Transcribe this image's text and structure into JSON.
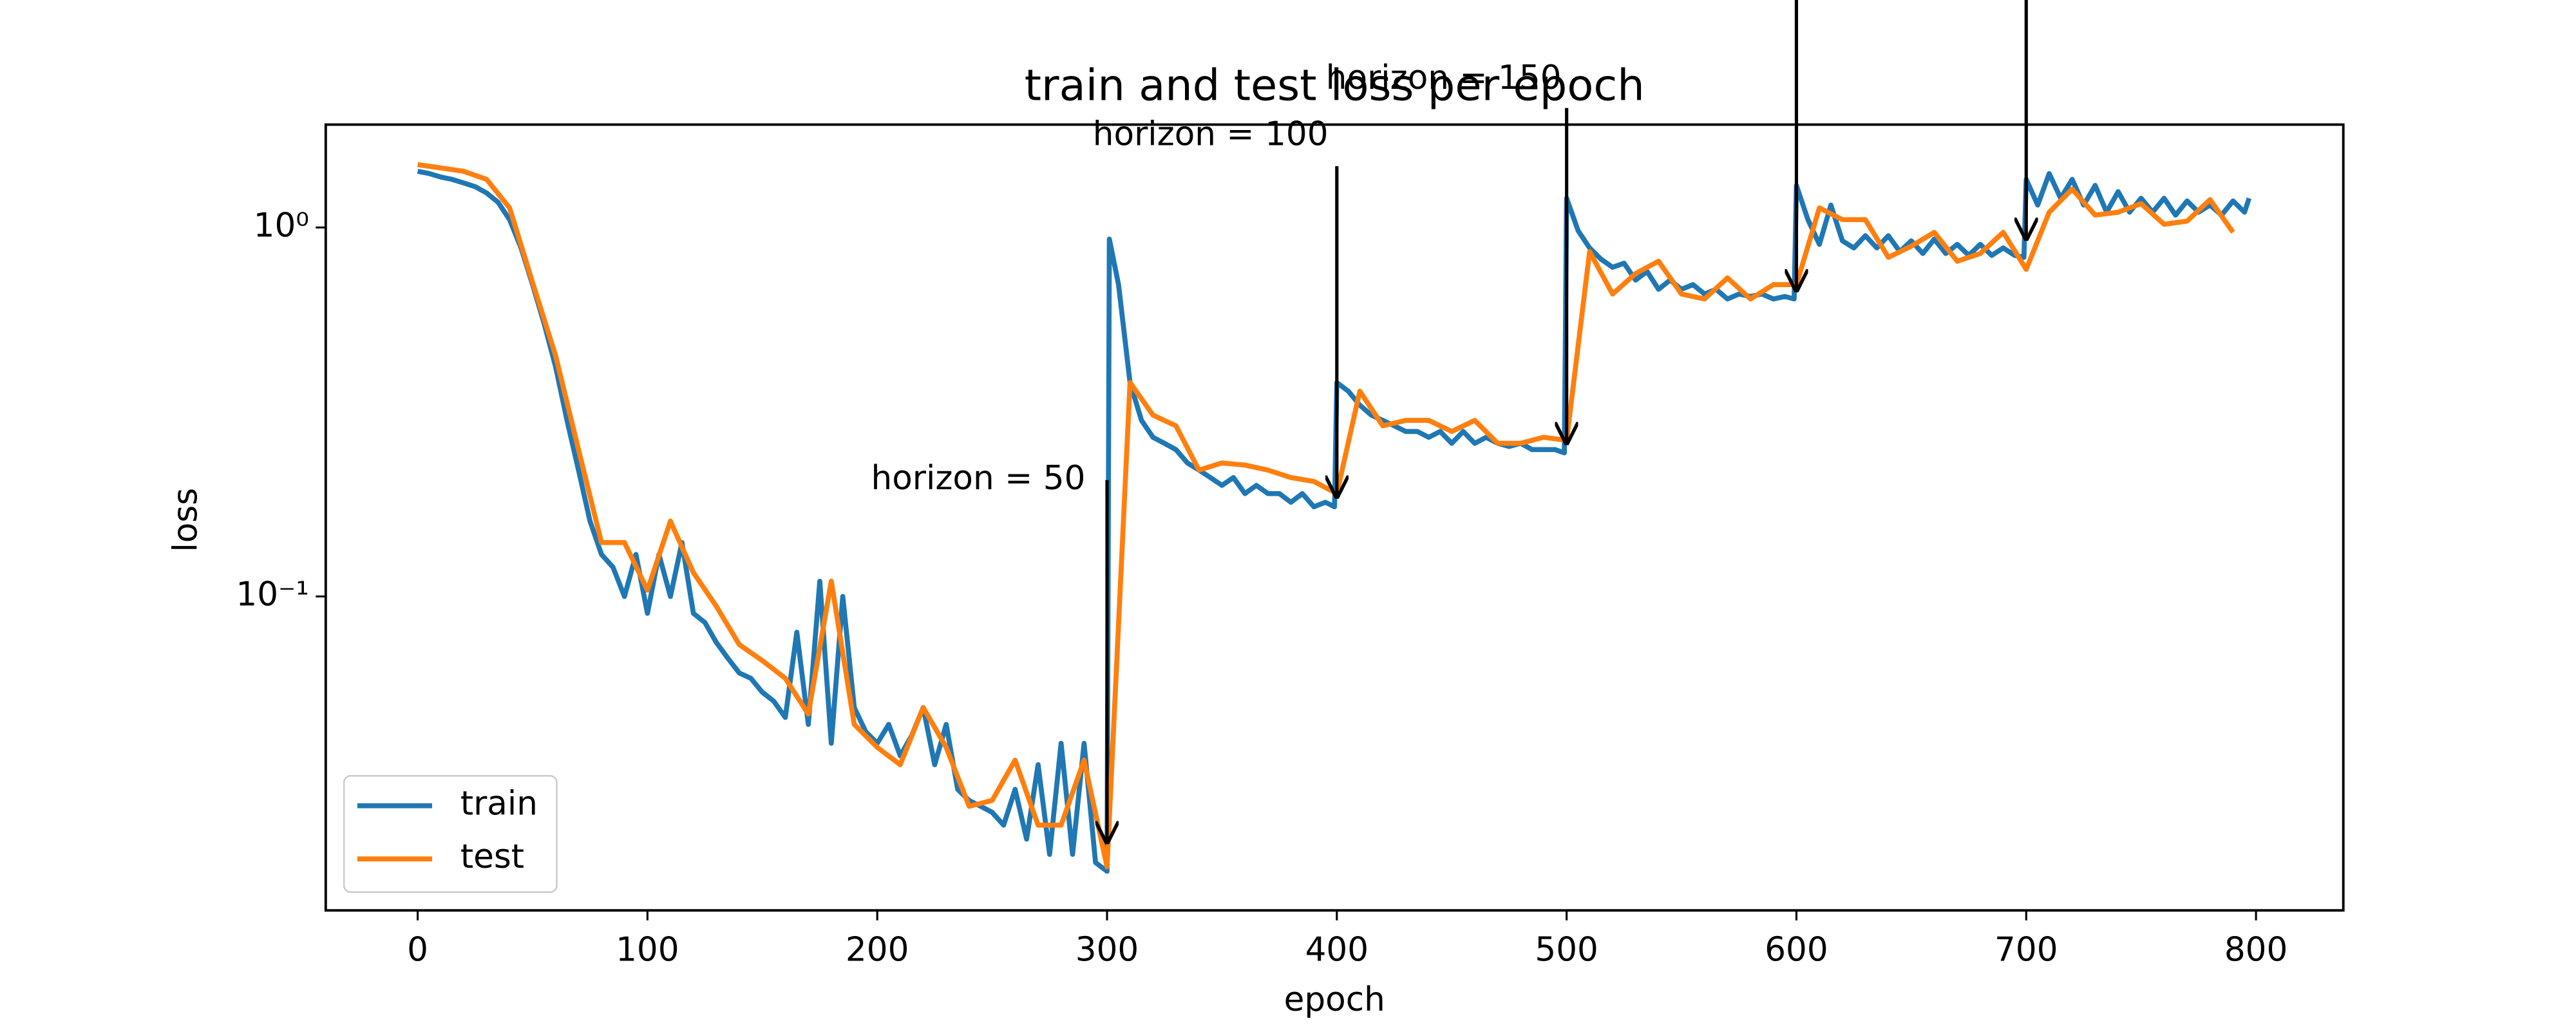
{
  "chart_data": {
    "type": "line",
    "title": "train and test loss per epoch",
    "x_label": "epoch",
    "y_label": "loss",
    "yscale": "log",
    "grid": false,
    "legend": "lower left",
    "xlim": [
      -40,
      838
    ],
    "ylim": [
      0.0141,
      1.9
    ],
    "xticks": [
      0,
      100,
      200,
      300,
      400,
      500,
      600,
      700,
      800
    ],
    "yticks": [
      {
        "value": 0.1,
        "label": "10⁻¹"
      },
      {
        "value": 1,
        "label": "10⁰"
      }
    ],
    "series": [
      {
        "name": "train",
        "color": "#1f77b4",
        "x": [
          0,
          5,
          10,
          15,
          20,
          25,
          30,
          35,
          40,
          45,
          50,
          55,
          60,
          65,
          70,
          75,
          80,
          85,
          90,
          95,
          100,
          105,
          110,
          115,
          120,
          125,
          130,
          135,
          140,
          145,
          150,
          155,
          160,
          165,
          170,
          175,
          180,
          185,
          190,
          195,
          200,
          205,
          210,
          215,
          220,
          225,
          230,
          235,
          240,
          245,
          250,
          255,
          260,
          265,
          270,
          275,
          280,
          285,
          290,
          295,
          300,
          301,
          305,
          310,
          315,
          320,
          325,
          330,
          335,
          340,
          345,
          350,
          355,
          360,
          365,
          370,
          375,
          380,
          385,
          390,
          395,
          399,
          400,
          405,
          410,
          415,
          420,
          425,
          430,
          435,
          440,
          445,
          450,
          455,
          460,
          465,
          470,
          475,
          480,
          485,
          490,
          495,
          499,
          500,
          505,
          510,
          515,
          520,
          525,
          530,
          535,
          540,
          545,
          550,
          555,
          560,
          565,
          570,
          575,
          580,
          585,
          590,
          595,
          599,
          600,
          605,
          610,
          615,
          620,
          625,
          630,
          635,
          640,
          645,
          650,
          655,
          660,
          665,
          670,
          675,
          680,
          685,
          690,
          695,
          699,
          700,
          705,
          710,
          715,
          720,
          725,
          730,
          735,
          740,
          745,
          750,
          755,
          760,
          765,
          770,
          775,
          780,
          785,
          790,
          795,
          797
        ],
        "values": [
          1.42,
          1.4,
          1.37,
          1.35,
          1.32,
          1.29,
          1.24,
          1.17,
          1.05,
          0.88,
          0.7,
          0.55,
          0.42,
          0.3,
          0.22,
          0.16,
          0.13,
          0.12,
          0.1,
          0.13,
          0.09,
          0.13,
          0.1,
          0.14,
          0.09,
          0.085,
          0.075,
          0.068,
          0.062,
          0.06,
          0.055,
          0.052,
          0.047,
          0.08,
          0.045,
          0.11,
          0.04,
          0.1,
          0.05,
          0.043,
          0.04,
          0.045,
          0.037,
          0.042,
          0.05,
          0.035,
          0.045,
          0.03,
          0.028,
          0.027,
          0.026,
          0.024,
          0.03,
          0.022,
          0.035,
          0.02,
          0.04,
          0.02,
          0.04,
          0.019,
          0.018,
          0.93,
          0.7,
          0.38,
          0.3,
          0.27,
          0.26,
          0.25,
          0.23,
          0.22,
          0.21,
          0.2,
          0.21,
          0.19,
          0.2,
          0.19,
          0.19,
          0.18,
          0.19,
          0.175,
          0.18,
          0.175,
          0.38,
          0.36,
          0.33,
          0.31,
          0.3,
          0.29,
          0.28,
          0.28,
          0.27,
          0.28,
          0.26,
          0.28,
          0.26,
          0.27,
          0.26,
          0.255,
          0.26,
          0.25,
          0.25,
          0.25,
          0.245,
          1.2,
          0.98,
          0.88,
          0.82,
          0.78,
          0.8,
          0.72,
          0.76,
          0.68,
          0.72,
          0.68,
          0.7,
          0.66,
          0.68,
          0.64,
          0.66,
          0.65,
          0.66,
          0.64,
          0.65,
          0.64,
          1.3,
          1.05,
          0.9,
          1.15,
          0.92,
          0.88,
          0.95,
          0.88,
          0.95,
          0.86,
          0.92,
          0.85,
          0.93,
          0.85,
          0.9,
          0.84,
          0.9,
          0.84,
          0.88,
          0.84,
          0.83,
          1.35,
          1.15,
          1.4,
          1.2,
          1.35,
          1.15,
          1.3,
          1.1,
          1.25,
          1.1,
          1.2,
          1.1,
          1.2,
          1.08,
          1.18,
          1.1,
          1.15,
          1.08,
          1.18,
          1.1,
          1.2
        ]
      },
      {
        "name": "test",
        "color": "#ff7f0e",
        "x": [
          0,
          10,
          20,
          30,
          40,
          50,
          60,
          70,
          80,
          90,
          100,
          110,
          120,
          130,
          140,
          150,
          160,
          170,
          180,
          190,
          200,
          210,
          220,
          230,
          240,
          250,
          260,
          270,
          280,
          290,
          300,
          310,
          320,
          330,
          340,
          350,
          360,
          370,
          380,
          390,
          400,
          410,
          420,
          430,
          440,
          450,
          460,
          470,
          480,
          490,
          500,
          510,
          520,
          530,
          540,
          550,
          560,
          570,
          580,
          590,
          600,
          610,
          620,
          630,
          640,
          650,
          660,
          670,
          680,
          690,
          700,
          710,
          720,
          730,
          740,
          750,
          760,
          770,
          780,
          790
        ],
        "values": [
          1.48,
          1.45,
          1.42,
          1.35,
          1.13,
          0.71,
          0.45,
          0.25,
          0.14,
          0.14,
          0.104,
          0.16,
          0.116,
          0.094,
          0.074,
          0.067,
          0.06,
          0.048,
          0.11,
          0.045,
          0.039,
          0.035,
          0.05,
          0.039,
          0.027,
          0.028,
          0.036,
          0.024,
          0.024,
          0.036,
          0.0185,
          0.38,
          0.31,
          0.29,
          0.22,
          0.23,
          0.227,
          0.22,
          0.21,
          0.205,
          0.19,
          0.36,
          0.29,
          0.3,
          0.3,
          0.28,
          0.3,
          0.26,
          0.26,
          0.27,
          0.265,
          0.86,
          0.66,
          0.75,
          0.81,
          0.66,
          0.64,
          0.73,
          0.64,
          0.7,
          0.7,
          1.13,
          1.05,
          1.05,
          0.83,
          0.89,
          0.97,
          0.81,
          0.85,
          0.97,
          0.77,
          1.1,
          1.27,
          1.08,
          1.1,
          1.16,
          1.02,
          1.04,
          1.19,
          0.97
        ]
      }
    ],
    "annotations": [
      {
        "text": "horizon = 50",
        "x": 300,
        "y": 0.0213
      },
      {
        "text": "horizon = 100",
        "x": 400,
        "y": 0.184
      },
      {
        "text": "horizon = 150",
        "x": 500,
        "y": 0.257
      },
      {
        "x": 600,
        "y": 0.667
      },
      {
        "x": 700,
        "y": 0.92
      }
    ]
  }
}
